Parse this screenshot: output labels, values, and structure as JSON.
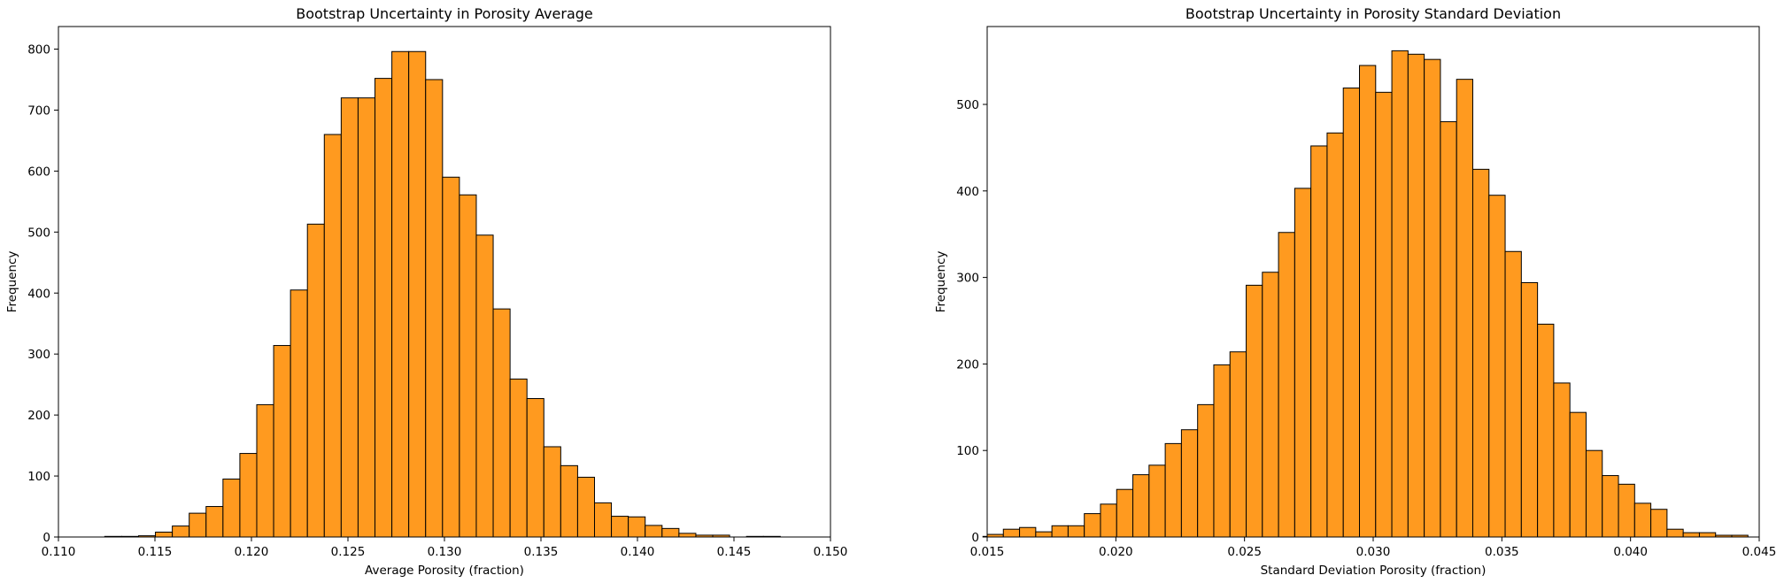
{
  "colors": {
    "bar_fill": "#ff9a1f",
    "bar_edge": "#000000",
    "axis": "#000000",
    "background": "#ffffff"
  },
  "chart_data": [
    {
      "type": "bar",
      "title": "Bootstrap Uncertainty in Porosity Average",
      "xlabel": "Average Porosity (fraction)",
      "ylabel": "Frequency",
      "xlim": [
        0.11,
        0.15
      ],
      "ylim": [
        0,
        837
      ],
      "xticks": [
        "0.110",
        "0.115",
        "0.120",
        "0.125",
        "0.130",
        "0.135",
        "0.140",
        "0.145",
        "0.150"
      ],
      "yticks": [
        "0",
        "100",
        "200",
        "300",
        "400",
        "500",
        "600",
        "700",
        "800"
      ],
      "bin_start": 0.1124,
      "bin_width": 0.000875,
      "values": [
        1,
        1,
        2,
        8,
        18,
        39,
        50,
        95,
        137,
        217,
        314,
        405,
        513,
        660,
        720,
        720,
        752,
        796,
        796,
        750,
        590,
        561,
        495,
        374,
        259,
        227,
        148,
        117,
        98,
        56,
        34,
        33,
        19,
        14,
        6,
        3,
        3,
        0,
        1,
        1,
        0,
        0,
        0,
        0,
        0,
        0,
        0,
        0,
        0,
        0,
        0,
        0,
        1,
        1,
        0
      ]
    },
    {
      "type": "bar",
      "title": "Bootstrap Uncertainty in Porosity Standard Deviation",
      "xlabel": "Standard Deviation Porosity (fraction)",
      "ylabel": "Frequency",
      "xlim": [
        0.015,
        0.045
      ],
      "ylim": [
        0,
        590
      ],
      "xticks": [
        "0.015",
        "0.020",
        "0.025",
        "0.030",
        "0.035",
        "0.040",
        "0.045"
      ],
      "yticks": [
        "0",
        "100",
        "200",
        "300",
        "400",
        "500"
      ],
      "bin_start": 0.015,
      "bin_width": 0.000629,
      "values": [
        3,
        9,
        11,
        6,
        13,
        13,
        27,
        38,
        55,
        72,
        83,
        108,
        124,
        153,
        199,
        214,
        291,
        306,
        352,
        403,
        452,
        467,
        519,
        545,
        514,
        562,
        558,
        552,
        480,
        529,
        425,
        395,
        330,
        294,
        246,
        178,
        144,
        100,
        71,
        61,
        39,
        32,
        9,
        5,
        5,
        2,
        2
      ]
    }
  ]
}
